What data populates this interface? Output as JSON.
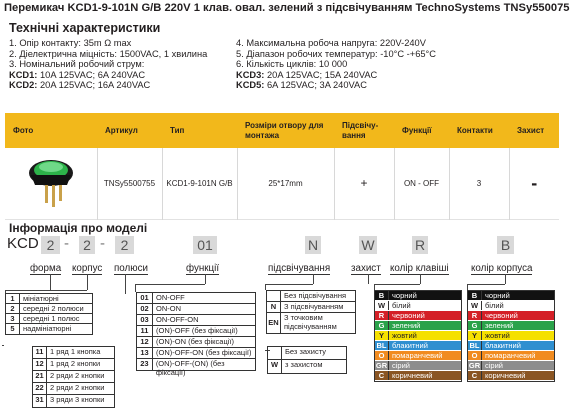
{
  "title": "Перемикач KCD1-9-101N G/B 220V 1 клав. овал. зелений з підсвічуванням TechnoSystems TNSy5500755",
  "spec_heading": "Технічні характеристики",
  "specs_left": [
    "1. Опір контакту: 35m Ω  max",
    "2. Діелектрична міцність:  1500VAC, 1 хвилина",
    "3. Номінальний робочий струм:"
  ],
  "specs_left_kcd1": {
    "k": "KCD1:",
    "v": " 10A 125VAC; 6A 240VAC"
  },
  "specs_left_kcd2": {
    "k": "KCD2:",
    "v": " 20A 125VAC; 16A 240VAC"
  },
  "specs_right": [
    "4. Максимальна робоча напруга: 220V-240V",
    "5. Діапазон робочих температур: -10°C -+65°C",
    "6. Кількість циклів: 10 000"
  ],
  "specs_right_kcd3": {
    "k": "KCD3:",
    "v": " 20A 125VAC; 15A 240VAC"
  },
  "specs_right_kcd5": {
    "k": "KCD5:",
    "v": " 6A 125VAC; 3A 240VAC"
  },
  "table": {
    "headers": [
      "Фото",
      "Артикул",
      "Тип",
      "Розміри отвору для монтажа",
      "Підсвічу-вання",
      "Функції",
      "Контакти",
      "Захист"
    ],
    "row": [
      "",
      "TNSy5500755",
      "KCD1-9-101N G/B",
      "25*17mm",
      "+",
      "ON - OFF",
      "3",
      "-"
    ]
  },
  "model_heading": "Інформація про моделі",
  "code": {
    "prefix": "KCD",
    "p1": "2",
    "p2": "2",
    "p3": "2",
    "p4": "01",
    "p5": "N",
    "p6": "W",
    "p7": "R",
    "p8": "B",
    "dash": "-"
  },
  "labels": {
    "form": "форма",
    "body": "корпус",
    "poles": "полюси",
    "func": "функції",
    "light": "підсвічування",
    "protect": "захист",
    "key_color": "колір клавіші",
    "body_color": "колір корпуса"
  },
  "form_options": [
    {
      "k": "1",
      "v": "мініатюрні"
    },
    {
      "k": "2",
      "v": "середні 2 полюси"
    },
    {
      "k": "3",
      "v": "середні 1 полюс"
    },
    {
      "k": "5",
      "v": "надмініатюрні"
    }
  ],
  "pole_options": [
    {
      "k": "11",
      "v": "1 ряд 1 кнопка"
    },
    {
      "k": "12",
      "v": "1 ряд 2 кнопки"
    },
    {
      "k": "21",
      "v": "2 ряди 2 кнопки"
    },
    {
      "k": "22",
      "v": "2 ряди 2 кнопки"
    },
    {
      "k": "31",
      "v": "3 ряди 3 кнопки"
    }
  ],
  "func_options": [
    {
      "k": "01",
      "v": "ON-OFF"
    },
    {
      "k": "02",
      "v": "ON-ON"
    },
    {
      "k": "03",
      "v": "ON-OFF-ON"
    },
    {
      "k": "11",
      "v": "(ON)-OFF (без фіксації)"
    },
    {
      "k": "12",
      "v": "(ON)-ON (без фіксації)"
    },
    {
      "k": "13",
      "v": "(ON)-OFF-ON (без фіксації)"
    },
    {
      "k": "23",
      "v": "(ON)-OFF-(ON) (без фіксації)"
    }
  ],
  "light_options": [
    {
      "k": "",
      "v": "Без підсвічування"
    },
    {
      "k": "N",
      "v": "З підсвічуванням"
    },
    {
      "k": "EN",
      "v": "З точковим підсвічуванням"
    }
  ],
  "protect_options": [
    {
      "k": "",
      "v": "Без захисту"
    },
    {
      "k": "W",
      "v": "з захистом"
    }
  ],
  "colors": [
    {
      "k": "B",
      "v": "чорний",
      "hex": "#111111"
    },
    {
      "k": "W",
      "v": "білий",
      "hex": "#ffffff"
    },
    {
      "k": "R",
      "v": "червоний",
      "hex": "#d42027"
    },
    {
      "k": "G",
      "v": "зелений",
      "hex": "#2aa24a"
    },
    {
      "k": "Y",
      "v": "жовтий",
      "hex": "#f5e000"
    },
    {
      "k": "BL",
      "v": "блакитний",
      "hex": "#2f8fd0"
    },
    {
      "k": "O",
      "v": "помаранчевий",
      "hex": "#f18b1f"
    },
    {
      "k": "GR",
      "v": "сірий",
      "hex": "#8d8d8d"
    },
    {
      "k": "C",
      "v": "коричневий",
      "hex": "#8a5523"
    }
  ],
  "accent": "#f2b81b"
}
